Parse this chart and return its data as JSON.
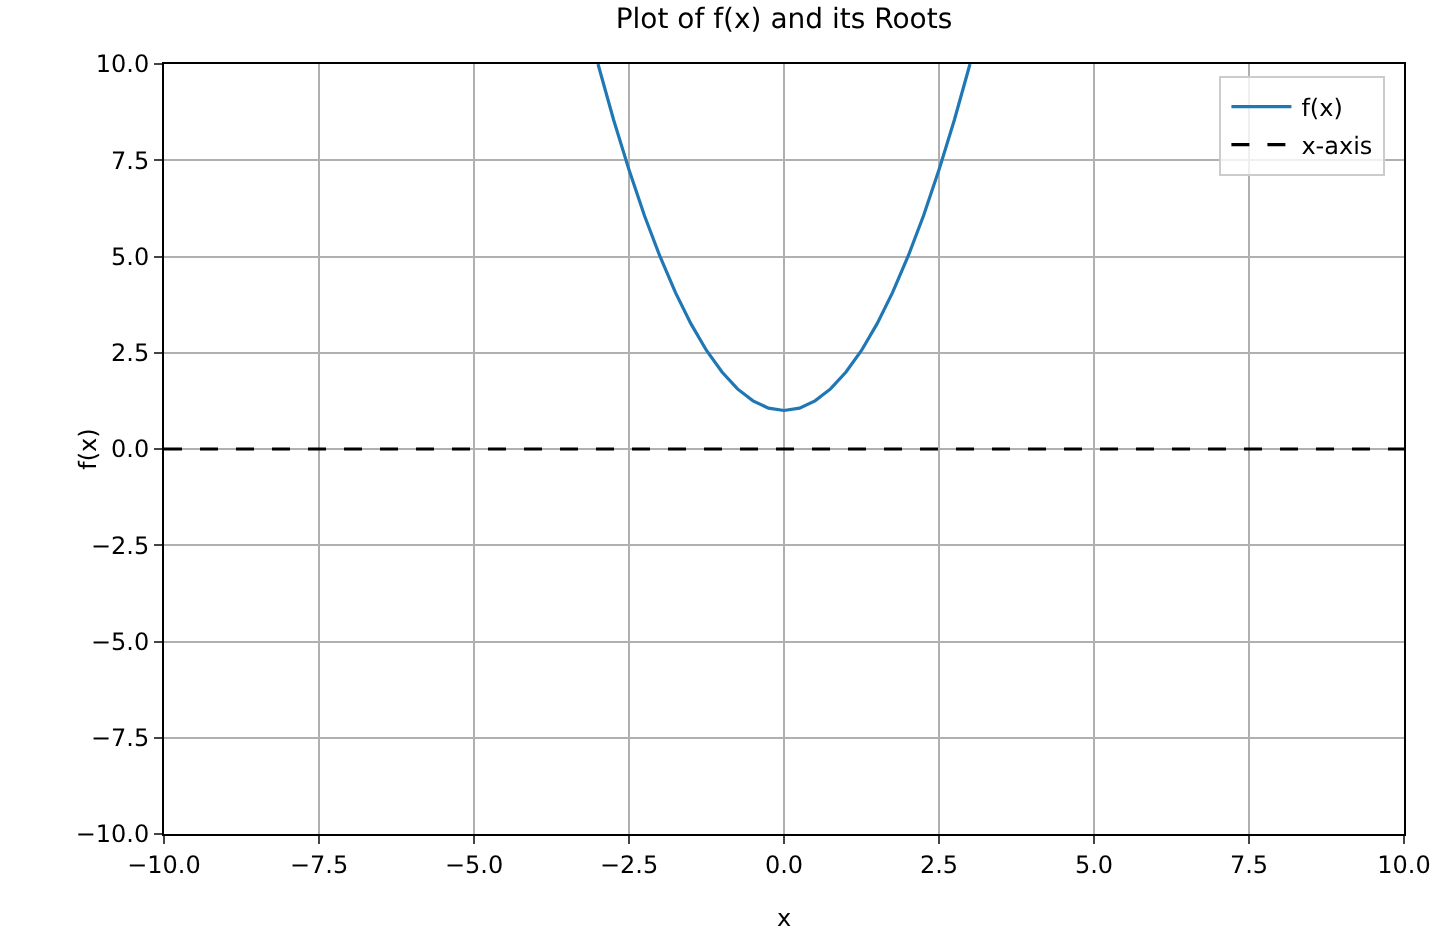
{
  "chart_data": {
    "type": "line",
    "title": "Plot of f(x) and its Roots",
    "xlabel": "x",
    "ylabel": "f(x)",
    "xlim": [
      -10,
      10
    ],
    "ylim": [
      -10,
      10
    ],
    "xticks": [
      {
        "value": -10,
        "label": "−10.0"
      },
      {
        "value": -7.5,
        "label": "−7.5"
      },
      {
        "value": -5,
        "label": "−5.0"
      },
      {
        "value": -2.5,
        "label": "−2.5"
      },
      {
        "value": 0,
        "label": "0.0"
      },
      {
        "value": 2.5,
        "label": "2.5"
      },
      {
        "value": 5,
        "label": "5.0"
      },
      {
        "value": 7.5,
        "label": "7.5"
      },
      {
        "value": 10,
        "label": "10.0"
      }
    ],
    "yticks": [
      {
        "value": -10,
        "label": "−10.0"
      },
      {
        "value": -7.5,
        "label": "−7.5"
      },
      {
        "value": -5,
        "label": "−5.0"
      },
      {
        "value": -2.5,
        "label": "−2.5"
      },
      {
        "value": 0,
        "label": "0.0"
      },
      {
        "value": 2.5,
        "label": "2.5"
      },
      {
        "value": 5,
        "label": "5.0"
      },
      {
        "value": 7.5,
        "label": "7.5"
      },
      {
        "value": 10,
        "label": "10.0"
      }
    ],
    "grid": true,
    "legend": "top right",
    "marker": "none",
    "series": [
      {
        "name": "f(x)",
        "color": "#1f77b4",
        "line_style": "solid",
        "x": [
          -3,
          -2.75,
          -2.5,
          -2.25,
          -2,
          -1.75,
          -1.5,
          -1.25,
          -1,
          -0.75,
          -0.5,
          -0.25,
          0,
          0.25,
          0.5,
          0.75,
          1,
          1.25,
          1.5,
          1.75,
          2,
          2.25,
          2.5,
          2.75,
          3
        ],
        "values": [
          10,
          8.56,
          7.25,
          6.06,
          5,
          4.06,
          3.25,
          2.56,
          2,
          1.56,
          1.25,
          1.06,
          1,
          1.06,
          1.25,
          1.56,
          2,
          2.56,
          3.25,
          4.06,
          5,
          6.06,
          7.25,
          8.56,
          10
        ]
      },
      {
        "name": "x-axis",
        "color": "#000000",
        "line_style": "dashed",
        "x": [
          -10,
          10
        ],
        "values": [
          0,
          0
        ]
      }
    ]
  }
}
